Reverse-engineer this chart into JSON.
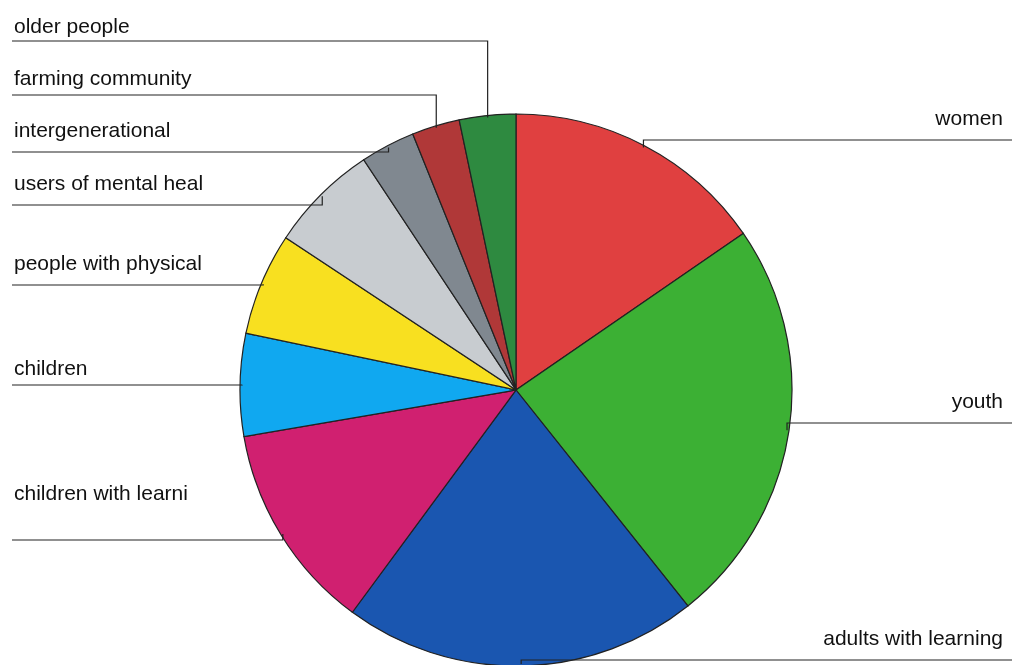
{
  "chart_data": {
    "type": "pie",
    "categories": [
      "women",
      "youth",
      "adults with learning",
      "children with learni",
      "children",
      "people with physical",
      "users of mental heal",
      "intergenerational",
      "farming community",
      "older people"
    ],
    "values": [
      15.4,
      23.9,
      20.8,
      12.2,
      6,
      6,
      6.4,
      3.2,
      2.8,
      3.3
    ],
    "colors": [
      "#e04040",
      "#3cb034",
      "#1a56b0",
      "#d02070",
      "#10a8f0",
      "#f8e020",
      "#c8ccd0",
      "#808890",
      "#b03838",
      "#2e8a40"
    ],
    "legend": false
  }
}
